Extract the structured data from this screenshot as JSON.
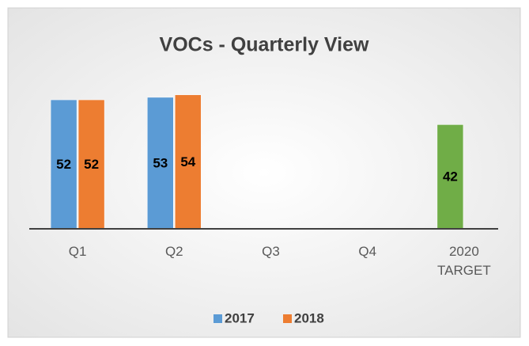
{
  "chart_data": {
    "type": "bar",
    "title": "VOCs - Quarterly View",
    "categories": [
      "Q1",
      "Q2",
      "Q3",
      "Q4",
      "2020 TARGET"
    ],
    "series": [
      {
        "name": "2017",
        "color": "#5b9bd5",
        "point_colors": [
          "#5b9bd5",
          "#5b9bd5",
          "#5b9bd5",
          "#5b9bd5",
          "#70ad47"
        ],
        "values": [
          52,
          53,
          null,
          null,
          42
        ]
      },
      {
        "name": "2018",
        "color": "#ed7d31",
        "values": [
          52,
          54,
          null,
          null,
          null
        ]
      }
    ],
    "ylim": [
      0,
      60
    ],
    "data_labels": true,
    "legend": "bottom"
  }
}
